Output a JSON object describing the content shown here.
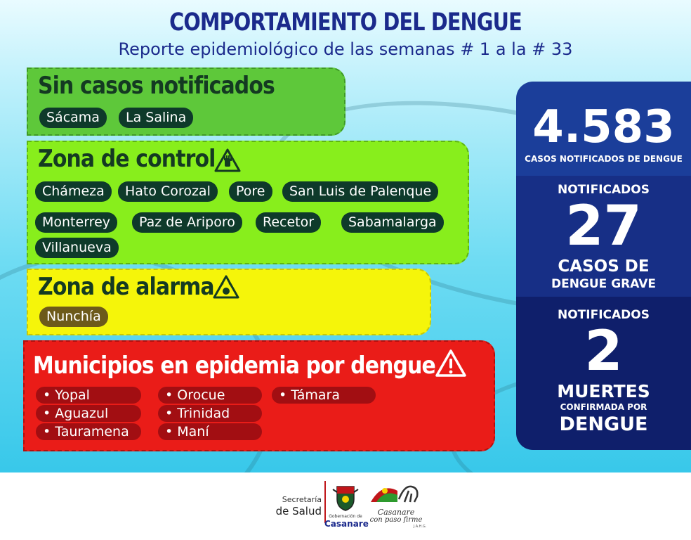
{
  "header": {
    "title": "COMPORTAMIENTO DEL DENGUE",
    "subtitle": "Reporte epidemiológico de las semanas # 1 a la  # 33"
  },
  "sin_casos": {
    "title": "Sin casos notificados",
    "items": [
      "Sácama",
      "La Salina"
    ]
  },
  "zona_control": {
    "title": "Zona de control",
    "items": [
      "Chámeza",
      "Hato Corozal",
      "Pore",
      "San Luis de Palenque",
      "Monterrey",
      "Paz de Ariporo",
      "Recetor",
      "Sabamalarga",
      "Villanueva"
    ]
  },
  "zona_alarma": {
    "title": "Zona de alarma",
    "items": [
      "Nunchía"
    ]
  },
  "epidemia": {
    "title": "Municipios en epidemia por dengue",
    "items": [
      "Yopal",
      "Orocue",
      "Támara",
      "Aguazul",
      "Trinidad",
      "Tauramena",
      "Maní"
    ]
  },
  "stats": {
    "total": {
      "number": "4.583",
      "label": "CASOS NOTIFICADOS DE DENGUE"
    },
    "grave": {
      "top": "NOTIFICADOS",
      "number": "27",
      "line1": "CASOS DE",
      "line2": "DENGUE GRAVE"
    },
    "muertes": {
      "top": "NOTIFICADOS",
      "number": "2",
      "line1": "MUERTES",
      "line2": "CONFIRMADA POR",
      "line3": "DENGUE"
    }
  },
  "footer": {
    "secretaria": "Secretaría",
    "de_salud": "de Salud",
    "gobernacion": "Gobernación de",
    "casanare": "Casanare",
    "slogan_line1": "Casanare",
    "slogan_line2": "con paso firme",
    "initials": "J.A.H.G."
  },
  "colors": {
    "green": "#5ec83a",
    "lime": "#88ee1c",
    "yellow": "#f5f50a",
    "red": "#ea1c18",
    "navy": "#1b2a8c"
  }
}
